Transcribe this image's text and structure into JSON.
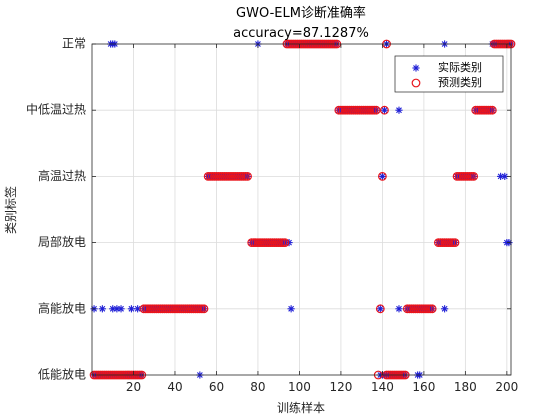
{
  "chart_data": {
    "type": "scatter",
    "title": "GWO-ELM诊断准确率",
    "subtitle": "accuracy=87.1287%",
    "xlabel": "训练样本",
    "ylabel": "类别标签",
    "xlim": [
      0,
      202
    ],
    "x_ticks": [
      20,
      40,
      60,
      80,
      100,
      120,
      140,
      160,
      180,
      200
    ],
    "categories": [
      "低能放电",
      "高能放电",
      "局部放电",
      "高温过热",
      "中低温过热",
      "正常"
    ],
    "grid": true,
    "legend_position": "top-right",
    "series": [
      {
        "name": "实际类别",
        "marker": "star",
        "color": "#1f1fd6",
        "points": [
          {
            "x_from": 1,
            "x_to": 24,
            "category": "低能放电"
          },
          {
            "x": 52,
            "category": "低能放电"
          },
          {
            "x_from": 139,
            "x_to": 151,
            "category": "低能放电"
          },
          {
            "x": 157,
            "category": "低能放电"
          },
          {
            "x": 158,
            "category": "低能放电"
          },
          {
            "x": 1,
            "category": "高能放电"
          },
          {
            "x": 5,
            "category": "高能放电"
          },
          {
            "x": 10,
            "category": "高能放电"
          },
          {
            "x": 12,
            "category": "高能放电"
          },
          {
            "x": 14,
            "category": "高能放电"
          },
          {
            "x": 19,
            "category": "高能放电"
          },
          {
            "x": 22,
            "category": "高能放电"
          },
          {
            "x_from": 25,
            "x_to": 54,
            "category": "高能放电"
          },
          {
            "x": 96,
            "category": "高能放电"
          },
          {
            "x": 139,
            "category": "高能放电"
          },
          {
            "x": 148,
            "category": "高能放电"
          },
          {
            "x_from": 152,
            "x_to": 164,
            "category": "高能放电"
          },
          {
            "x": 170,
            "category": "高能放电"
          },
          {
            "x_from": 77,
            "x_to": 93,
            "category": "局部放电"
          },
          {
            "x": 95,
            "category": "局部放电"
          },
          {
            "x_from": 167,
            "x_to": 175,
            "category": "局部放电"
          },
          {
            "x": 200,
            "category": "局部放电"
          },
          {
            "x": 201,
            "category": "局部放电"
          },
          {
            "x_from": 56,
            "x_to": 75,
            "category": "高温过热"
          },
          {
            "x": 140,
            "category": "高温过热"
          },
          {
            "x_from": 176,
            "x_to": 184,
            "category": "高温过热"
          },
          {
            "x": 197,
            "category": "高温过热"
          },
          {
            "x": 199,
            "category": "高温过热"
          },
          {
            "x_from": 119,
            "x_to": 137,
            "category": "中低温过热"
          },
          {
            "x": 141,
            "category": "中低温过热"
          },
          {
            "x": 148,
            "category": "中低温过热"
          },
          {
            "x_from": 185,
            "x_to": 193,
            "category": "中低温过热"
          },
          {
            "x": 9,
            "category": "正常"
          },
          {
            "x": 10,
            "category": "正常"
          },
          {
            "x": 11,
            "category": "正常"
          },
          {
            "x": 80,
            "category": "正常"
          },
          {
            "x_from": 94,
            "x_to": 118,
            "category": "正常"
          },
          {
            "x": 142,
            "category": "正常"
          },
          {
            "x": 170,
            "category": "正常"
          },
          {
            "x_from": 193,
            "x_to": 202,
            "category": "正常"
          }
        ]
      },
      {
        "name": "预测类别",
        "marker": "circle",
        "color": "#e8141c",
        "points": [
          {
            "x_from": 1,
            "x_to": 24,
            "category": "低能放电"
          },
          {
            "x": 138,
            "category": "低能放电"
          },
          {
            "x_from": 142,
            "x_to": 151,
            "category": "低能放电"
          },
          {
            "x_from": 25,
            "x_to": 54,
            "category": "高能放电"
          },
          {
            "x": 139,
            "category": "高能放电"
          },
          {
            "x_from": 152,
            "x_to": 164,
            "category": "高能放电"
          },
          {
            "x_from": 77,
            "x_to": 93,
            "category": "局部放电"
          },
          {
            "x_from": 167,
            "x_to": 175,
            "category": "局部放电"
          },
          {
            "x_from": 56,
            "x_to": 75,
            "category": "高温过热"
          },
          {
            "x": 140,
            "category": "高温过热"
          },
          {
            "x_from": 176,
            "x_to": 184,
            "category": "高温过热"
          },
          {
            "x_from": 119,
            "x_to": 137,
            "category": "中低温过热"
          },
          {
            "x": 141,
            "category": "中低温过热"
          },
          {
            "x_from": 185,
            "x_to": 193,
            "category": "中低温过热"
          },
          {
            "x_from": 94,
            "x_to": 118,
            "category": "正常"
          },
          {
            "x": 142,
            "category": "正常"
          },
          {
            "x_from": 194,
            "x_to": 202,
            "category": "正常"
          }
        ]
      }
    ]
  }
}
